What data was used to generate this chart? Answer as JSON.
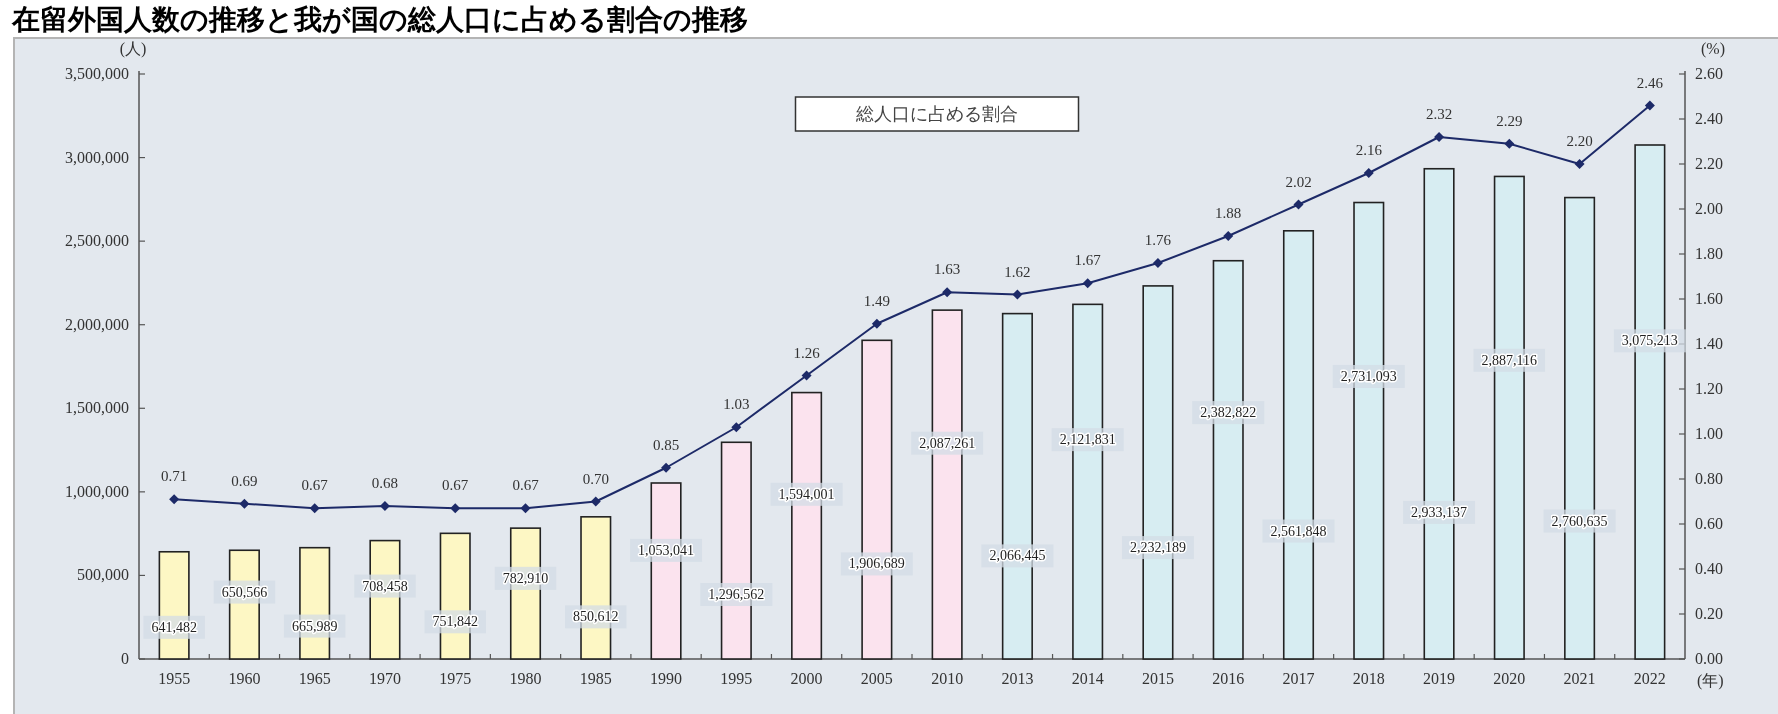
{
  "chart_data": {
    "type": "bar",
    "title": "在留外国人数の推移と我が国の総人口に占める割合の推移",
    "xlabel": "(年)",
    "ylabel": "(人)",
    "y2label": "(%)",
    "categories": [
      "1955",
      "1960",
      "1965",
      "1970",
      "1975",
      "1980",
      "1985",
      "1990",
      "1995",
      "2000",
      "2005",
      "2010",
      "2013",
      "2014",
      "2015",
      "2016",
      "2017",
      "2018",
      "2019",
      "2020",
      "2021",
      "2022"
    ],
    "series": [
      {
        "colors": [
          "#fdf7c4",
          "#fdf7c4",
          "#fdf7c4",
          "#fdf7c4",
          "#fdf7c4",
          "#fdf7c4",
          "#fdf7c4",
          "#fbe3ee",
          "#fbe3ee",
          "#fbe3ee",
          "#fbe3ee",
          "#fbe3ee",
          "#d7edf2",
          "#d7edf2",
          "#d7edf2",
          "#d7edf2",
          "#d7edf2",
          "#d7edf2",
          "#d7edf2",
          "#d7edf2",
          "#d7edf2",
          "#d7edf2"
        ],
        "values": [
          641482,
          650566,
          665989,
          708458,
          751842,
          782910,
          850612,
          1053041,
          1296562,
          1594001,
          1906689,
          2087261,
          2066445,
          2121831,
          2232189,
          2382822,
          2561848,
          2731093,
          2933137,
          2887116,
          2760635,
          3075213
        ],
        "value_labels": [
          "641,482",
          "650,566",
          "665,989",
          "708,458",
          "751,842",
          "782,910",
          "850,612",
          "1,053,041",
          "1,296,562",
          "1,594,001",
          "1,906,689",
          "2,087,261",
          "2,066,445",
          "2,121,831",
          "2,232,189",
          "2,382,822",
          "2,561,848",
          "2,731,093",
          "2,933,137",
          "2,887,116",
          "2,760,635",
          "3,075,213"
        ]
      },
      {
        "type": "line",
        "name": "総人口に占める割合",
        "color": "#1d2a68",
        "axis": "y2",
        "values": [
          0.71,
          0.69,
          0.67,
          0.68,
          0.67,
          0.67,
          0.7,
          0.85,
          1.03,
          1.26,
          1.49,
          1.63,
          1.62,
          1.67,
          1.76,
          1.88,
          2.02,
          2.16,
          2.32,
          2.29,
          2.2,
          2.46
        ],
        "value_labels": [
          "0.71",
          "0.69",
          "0.67",
          "0.68",
          "0.67",
          "0.67",
          "0.70",
          "0.85",
          "1.03",
          "1.26",
          "1.49",
          "1.63",
          "1.62",
          "1.67",
          "1.76",
          "1.88",
          "2.02",
          "2.16",
          "2.32",
          "2.29",
          "2.20",
          "2.46"
        ]
      }
    ],
    "ylim": [
      0,
      3500000
    ],
    "yticks": [
      0,
      {
        "value": 500000,
        "label": "500,000"
      },
      {
        "value": 1000000,
        "label": "1,000,000"
      },
      {
        "value": 1500000,
        "label": "1,500,000"
      },
      {
        "value": 2000000,
        "label": "2,000,000"
      },
      {
        "value": 2500000,
        "label": "2,500,000"
      },
      {
        "value": 3000000,
        "label": "3,000,000"
      },
      {
        "value": 3500000,
        "label": "3,500,000"
      }
    ],
    "y2lim": [
      0,
      2.6
    ],
    "y2ticks": [
      {
        "value": 0,
        "label": "0.00"
      },
      {
        "value": 0.2,
        "label": "0.20"
      },
      {
        "value": 0.4,
        "label": "0.40"
      },
      {
        "value": 0.6,
        "label": "0.60"
      },
      {
        "value": 0.8,
        "label": "0.80"
      },
      {
        "value": 1,
        "label": "1.00"
      },
      {
        "value": 1.2,
        "label": "1.20"
      },
      {
        "value": 1.4,
        "label": "1.40"
      },
      {
        "value": 1.6,
        "label": "1.60"
      },
      {
        "value": 1.8,
        "label": "1.80"
      },
      {
        "value": 2,
        "label": "2.00"
      },
      {
        "value": 2.2,
        "label": "2.20"
      },
      {
        "value": 2.4,
        "label": "2.40"
      },
      {
        "value": 2.6,
        "label": "2.60"
      }
    ],
    "legend": "top",
    "marker": "diamond"
  }
}
